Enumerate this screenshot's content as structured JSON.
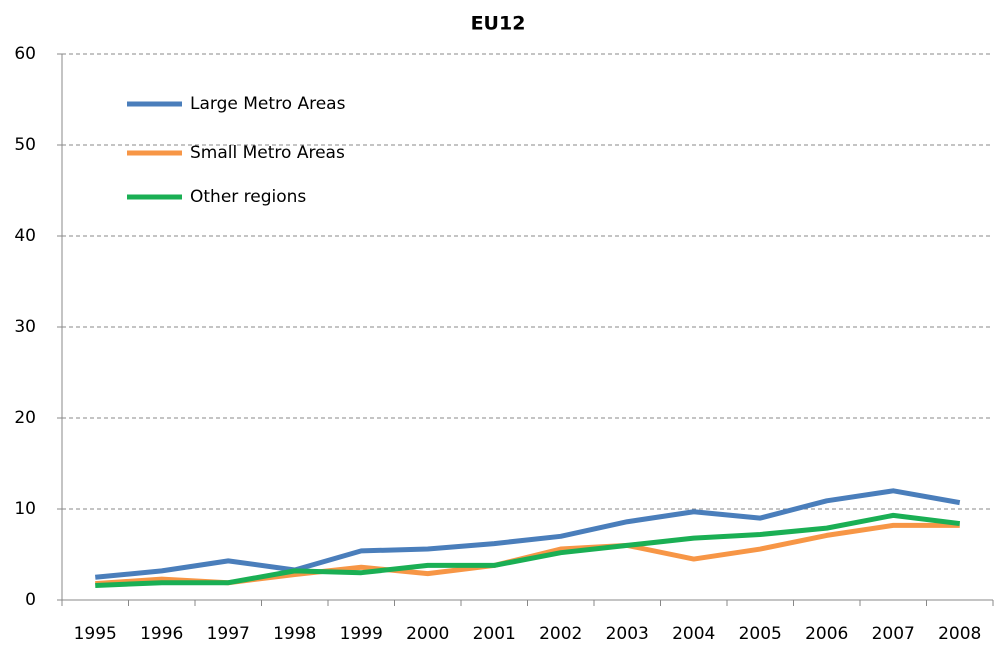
{
  "chart_data": {
    "type": "line",
    "title": "EU12",
    "categories": [
      "1995",
      "1996",
      "1997",
      "1998",
      "1999",
      "2000",
      "2001",
      "2002",
      "2003",
      "2004",
      "2005",
      "2006",
      "2007",
      "2008"
    ],
    "series": [
      {
        "name": "Large Metro Areas",
        "color": "#4a7ebb",
        "values": [
          2.5,
          3.2,
          4.3,
          3.3,
          5.4,
          5.6,
          6.2,
          7.0,
          8.6,
          9.7,
          9.0,
          10.9,
          12.0,
          10.7
        ]
      },
      {
        "name": "Small Metro Areas",
        "color": "#f79646",
        "values": [
          1.8,
          2.3,
          1.9,
          2.8,
          3.6,
          2.9,
          3.8,
          5.6,
          6.0,
          4.5,
          5.6,
          7.1,
          8.2,
          8.2
        ]
      },
      {
        "name": "Other regions",
        "color": "#1aaf54",
        "values": [
          1.6,
          1.9,
          1.9,
          3.2,
          3.0,
          3.8,
          3.8,
          5.2,
          6.0,
          6.8,
          7.2,
          7.9,
          9.3,
          8.4
        ]
      }
    ],
    "ylim": [
      0,
      60
    ],
    "yticks": [
      0,
      10,
      20,
      30,
      40,
      50,
      60
    ],
    "grid": true,
    "legend": "top-left"
  }
}
